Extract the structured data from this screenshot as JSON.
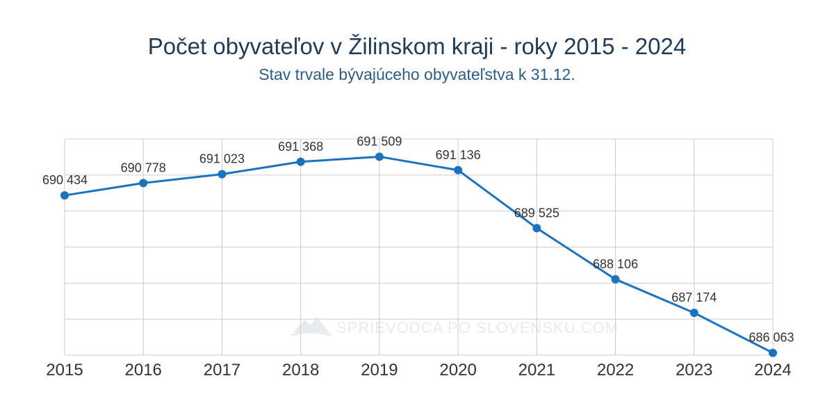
{
  "chart_data": {
    "type": "line",
    "title": "Počet obyvateľov v Žilinskom kraji - roky 2015 - 2024",
    "subtitle": "Stav trvale bývajúceho obyvateľstva k 31.12.",
    "categories": [
      "2015",
      "2016",
      "2017",
      "2018",
      "2019",
      "2020",
      "2021",
      "2022",
      "2023",
      "2024"
    ],
    "series": [
      {
        "values": [
          690434,
          690778,
          691023,
          691368,
          691509,
          691136,
          689525,
          688106,
          687174,
          686063
        ]
      }
    ],
    "data_labels": [
      "690 434",
      "690 778",
      "691 023",
      "691 368",
      "691 509",
      "691 136",
      "689 525",
      "688 106",
      "687 174",
      "686 063"
    ],
    "ylim": [
      686000,
      692000
    ],
    "y_tick_labels_shown": false,
    "grid": true,
    "line_color": "#1a73c1",
    "watermark": "SPRIEVODCA PO SLOVENSKU.COM"
  }
}
